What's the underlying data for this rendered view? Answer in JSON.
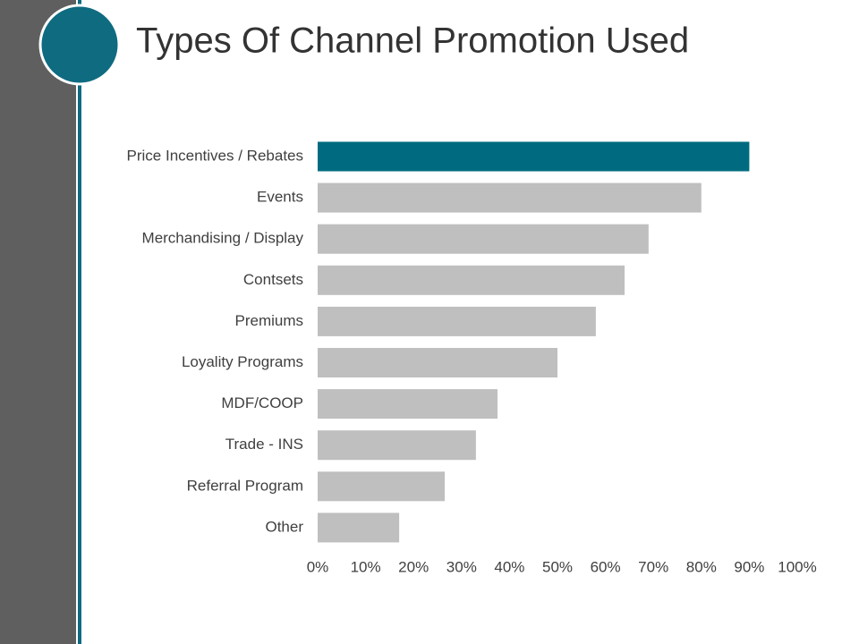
{
  "chart_data": {
    "type": "bar",
    "orientation": "horizontal",
    "title": "Types Of Channel Promotion Used",
    "categories": [
      "Price Incentives / Rebates",
      "Events",
      "Merchandising / Display",
      "Contsets",
      "Premiums",
      "Loyality Programs",
      "MDF/COOP",
      "Trade - INS",
      "Referral Program",
      "Other"
    ],
    "values": [
      90,
      80,
      69,
      64,
      58,
      50,
      37.5,
      33,
      26.5,
      17
    ],
    "colors": [
      "#006b80",
      "#bfbfbf",
      "#bfbfbf",
      "#bfbfbf",
      "#bfbfbf",
      "#bfbfbf",
      "#bfbfbf",
      "#bfbfbf",
      "#bfbfbf",
      "#bfbfbf"
    ],
    "xlim": [
      0,
      100
    ],
    "xticks": [
      {
        "value": 0,
        "label": "0%"
      },
      {
        "value": 10,
        "label": "10%"
      },
      {
        "value": 20,
        "label": "20%"
      },
      {
        "value": 30,
        "label": "30%"
      },
      {
        "value": 40,
        "label": "40%"
      },
      {
        "value": 50,
        "label": "50%"
      },
      {
        "value": 60,
        "label": "60%"
      },
      {
        "value": 70,
        "label": "70%"
      },
      {
        "value": 80,
        "label": "80%"
      },
      {
        "value": 90,
        "label": "90%"
      },
      {
        "value": 100,
        "label": "100%"
      }
    ],
    "grid": false
  }
}
